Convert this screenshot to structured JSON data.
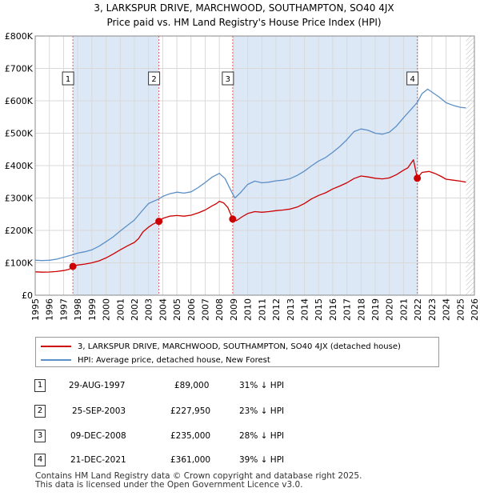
{
  "title": "3, LARKSPUR DRIVE, MARCHWOOD, SOUTHAMPTON, SO40 4JX",
  "subtitle": "Price paid vs. HM Land Registry's House Price Index (HPI)",
  "chart_data": {
    "type": "line",
    "title": "3, LARKSPUR DRIVE, MARCHWOOD, SOUTHAMPTON, SO40 4JX",
    "subtitle": "Price paid vs. HM Land Registry's House Price Index (HPI)",
    "xlim": [
      1995,
      2026
    ],
    "ylim": [
      0,
      800000
    ],
    "x_ticks": [
      1995,
      1996,
      1997,
      1998,
      1999,
      2000,
      2001,
      2002,
      2003,
      2004,
      2005,
      2006,
      2007,
      2008,
      2009,
      2010,
      2011,
      2012,
      2013,
      2014,
      2015,
      2016,
      2017,
      2018,
      2019,
      2020,
      2021,
      2022,
      2023,
      2024,
      2025,
      2026
    ],
    "y_ticks": [
      0,
      100000,
      200000,
      300000,
      400000,
      500000,
      600000,
      700000,
      800000
    ],
    "y_tick_labels": [
      "£0",
      "£100K",
      "£200K",
      "£300K",
      "£400K",
      "£500K",
      "£600K",
      "£700K",
      "£800K"
    ],
    "grid": true,
    "legend_position": "below",
    "series": [
      {
        "name": "3, LARKSPUR DRIVE, MARCHWOOD, SOUTHAMPTON, SO40 4JX (detached house)",
        "color": "#cc0000",
        "points": [
          [
            1995.0,
            72000
          ],
          [
            1995.5,
            71000
          ],
          [
            1996.0,
            71500
          ],
          [
            1996.5,
            73000
          ],
          [
            1997.0,
            76000
          ],
          [
            1997.4,
            80000
          ],
          [
            1997.66,
            89000
          ],
          [
            1998.0,
            93000
          ],
          [
            1998.5,
            96000
          ],
          [
            1999.0,
            100000
          ],
          [
            1999.5,
            106000
          ],
          [
            2000.0,
            115000
          ],
          [
            2000.5,
            127000
          ],
          [
            2001.0,
            140000
          ],
          [
            2001.5,
            152000
          ],
          [
            2002.0,
            163000
          ],
          [
            2002.3,
            175000
          ],
          [
            2002.6,
            195000
          ],
          [
            2003.0,
            210000
          ],
          [
            2003.3,
            219000
          ],
          [
            2003.73,
            227950
          ],
          [
            2004.0,
            237000
          ],
          [
            2004.5,
            244000
          ],
          [
            2005.0,
            246000
          ],
          [
            2005.5,
            244000
          ],
          [
            2006.0,
            247000
          ],
          [
            2006.5,
            254000
          ],
          [
            2007.0,
            263000
          ],
          [
            2007.5,
            276000
          ],
          [
            2007.8,
            283000
          ],
          [
            2008.0,
            290000
          ],
          [
            2008.3,
            285000
          ],
          [
            2008.6,
            270000
          ],
          [
            2008.94,
            235000
          ],
          [
            2009.2,
            230000
          ],
          [
            2009.6,
            242000
          ],
          [
            2010.0,
            252000
          ],
          [
            2010.5,
            258000
          ],
          [
            2011.0,
            256000
          ],
          [
            2011.5,
            258000
          ],
          [
            2012.0,
            261000
          ],
          [
            2012.5,
            263000
          ],
          [
            2013.0,
            266000
          ],
          [
            2013.5,
            272000
          ],
          [
            2014.0,
            283000
          ],
          [
            2014.5,
            297000
          ],
          [
            2015.0,
            308000
          ],
          [
            2015.5,
            316000
          ],
          [
            2016.0,
            328000
          ],
          [
            2016.5,
            337000
          ],
          [
            2017.0,
            347000
          ],
          [
            2017.5,
            360000
          ],
          [
            2018.0,
            368000
          ],
          [
            2018.5,
            365000
          ],
          [
            2019.0,
            361000
          ],
          [
            2019.5,
            359000
          ],
          [
            2020.0,
            362000
          ],
          [
            2020.5,
            372000
          ],
          [
            2021.0,
            386000
          ],
          [
            2021.3,
            393000
          ],
          [
            2021.7,
            418000
          ],
          [
            2021.97,
            361000
          ],
          [
            2022.3,
            379000
          ],
          [
            2022.8,
            382000
          ],
          [
            2023.2,
            376000
          ],
          [
            2023.6,
            368000
          ],
          [
            2024.0,
            358000
          ],
          [
            2024.5,
            355000
          ],
          [
            2025.0,
            352000
          ],
          [
            2025.4,
            349000
          ]
        ]
      },
      {
        "name": "HPI: Average price, detached house, New Forest",
        "color": "#5b8fc7",
        "points": [
          [
            1995.0,
            108000
          ],
          [
            1995.5,
            107000
          ],
          [
            1996.0,
            108000
          ],
          [
            1996.5,
            111000
          ],
          [
            1997.0,
            117000
          ],
          [
            1997.66,
            125000
          ],
          [
            1998.0,
            130000
          ],
          [
            1998.5,
            134000
          ],
          [
            1999.0,
            140000
          ],
          [
            1999.5,
            151000
          ],
          [
            2000.0,
            165000
          ],
          [
            2000.5,
            180000
          ],
          [
            2001.0,
            198000
          ],
          [
            2001.5,
            215000
          ],
          [
            2002.0,
            232000
          ],
          [
            2002.5,
            258000
          ],
          [
            2003.0,
            283000
          ],
          [
            2003.73,
            297000
          ],
          [
            2004.0,
            305000
          ],
          [
            2004.5,
            313000
          ],
          [
            2005.0,
            318000
          ],
          [
            2005.5,
            315000
          ],
          [
            2006.0,
            319000
          ],
          [
            2006.5,
            332000
          ],
          [
            2007.0,
            348000
          ],
          [
            2007.5,
            365000
          ],
          [
            2008.0,
            376000
          ],
          [
            2008.4,
            360000
          ],
          [
            2008.94,
            312000
          ],
          [
            2009.1,
            300000
          ],
          [
            2009.5,
            317000
          ],
          [
            2010.0,
            342000
          ],
          [
            2010.5,
            352000
          ],
          [
            2011.0,
            347000
          ],
          [
            2011.5,
            349000
          ],
          [
            2012.0,
            353000
          ],
          [
            2012.5,
            355000
          ],
          [
            2013.0,
            360000
          ],
          [
            2013.5,
            370000
          ],
          [
            2014.0,
            383000
          ],
          [
            2014.5,
            399000
          ],
          [
            2015.0,
            414000
          ],
          [
            2015.5,
            425000
          ],
          [
            2016.0,
            441000
          ],
          [
            2016.5,
            459000
          ],
          [
            2017.0,
            480000
          ],
          [
            2017.5,
            505000
          ],
          [
            2018.0,
            513000
          ],
          [
            2018.5,
            509000
          ],
          [
            2019.0,
            500000
          ],
          [
            2019.5,
            497000
          ],
          [
            2020.0,
            503000
          ],
          [
            2020.5,
            522000
          ],
          [
            2021.0,
            548000
          ],
          [
            2021.5,
            572000
          ],
          [
            2021.97,
            595000
          ],
          [
            2022.3,
            622000
          ],
          [
            2022.7,
            636000
          ],
          [
            2023.0,
            627000
          ],
          [
            2023.5,
            612000
          ],
          [
            2024.0,
            594000
          ],
          [
            2024.5,
            586000
          ],
          [
            2025.0,
            580000
          ],
          [
            2025.4,
            578000
          ]
        ]
      }
    ],
    "markers": [
      {
        "label": "1",
        "x": 1997.66,
        "y": 89000
      },
      {
        "label": "2",
        "x": 2003.73,
        "y": 227950
      },
      {
        "label": "3",
        "x": 2008.94,
        "y": 235000
      },
      {
        "label": "4",
        "x": 2021.97,
        "y": 361000
      }
    ],
    "shaded_spans": [
      [
        1997.66,
        2003.73
      ],
      [
        2008.94,
        2021.97
      ]
    ],
    "hatched_from": 2025.4
  },
  "legend": {
    "property_label": "3, LARKSPUR DRIVE, MARCHWOOD, SOUTHAMPTON, SO40 4JX (detached house)",
    "hpi_label": "HPI: Average price, detached house, New Forest"
  },
  "transactions": [
    {
      "num": "1",
      "date": "29-AUG-1997",
      "price": "£89,000",
      "hpi": "31% ↓ HPI"
    },
    {
      "num": "2",
      "date": "25-SEP-2003",
      "price": "£227,950",
      "hpi": "23% ↓ HPI"
    },
    {
      "num": "3",
      "date": "09-DEC-2008",
      "price": "£235,000",
      "hpi": "28% ↓ HPI"
    },
    {
      "num": "4",
      "date": "21-DEC-2021",
      "price": "£361,000",
      "hpi": "39% ↓ HPI"
    }
  ],
  "footer": {
    "line1": "Contains HM Land Registry data © Crown copyright and database right 2025.",
    "line2": "This data is licensed under the Open Government Licence v3.0."
  },
  "colors": {
    "property": "#cc0000",
    "hpi": "#5b8fc7",
    "shade": "#dde8f6"
  }
}
